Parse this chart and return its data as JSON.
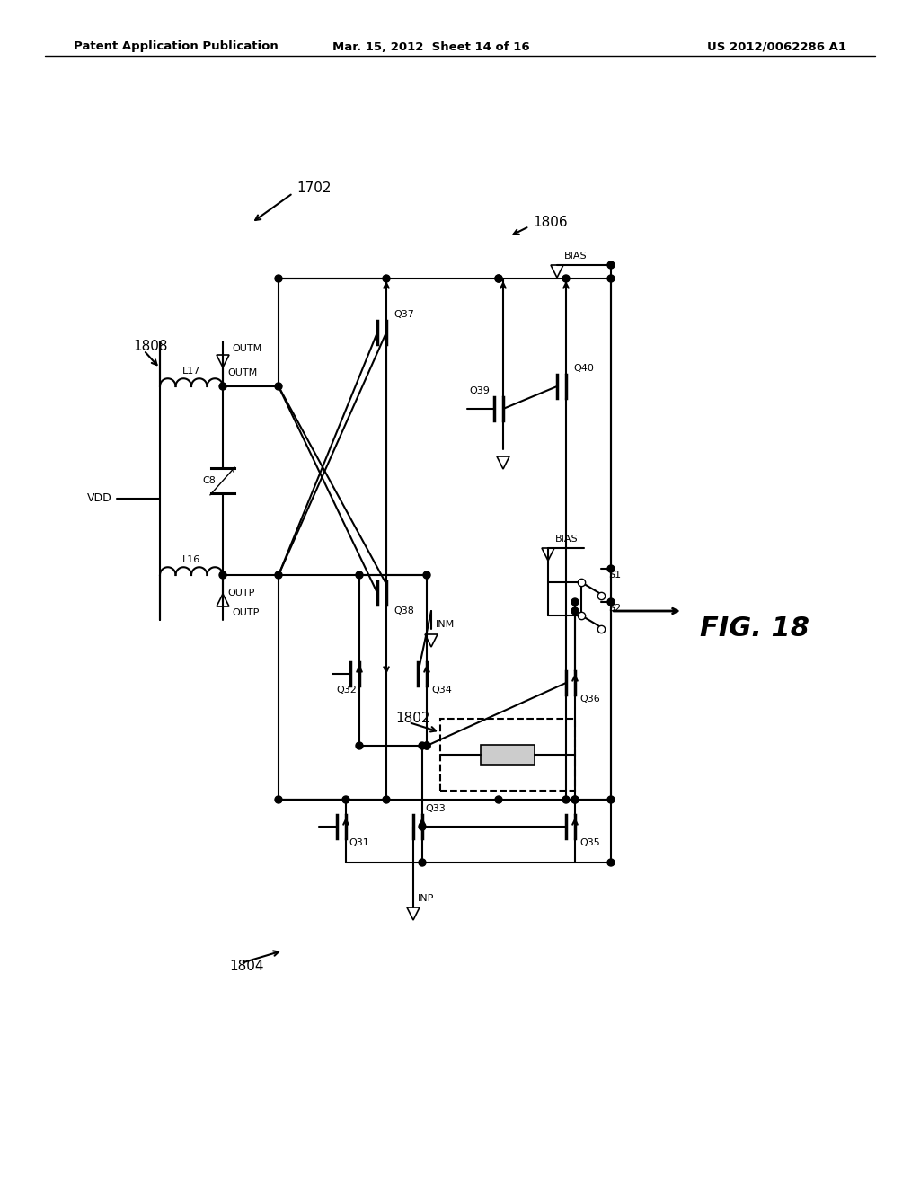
{
  "header_left": "Patent Application Publication",
  "header_center": "Mar. 15, 2012  Sheet 14 of 16",
  "header_right": "US 2012/0062286 A1",
  "fig_label": "FIG. 18",
  "bg_color": "#ffffff"
}
